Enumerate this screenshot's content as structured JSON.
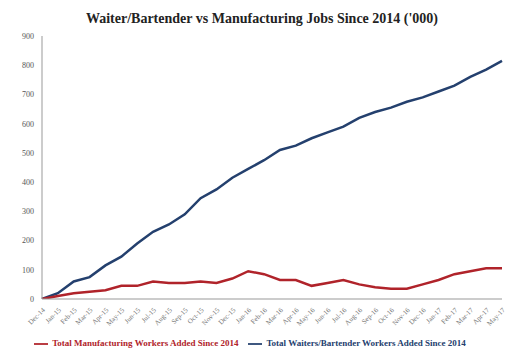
{
  "chart_data": {
    "type": "line",
    "title": "Waiter/Bartender vs Manufacturing Jobs Since 2014 ('000)",
    "categories": [
      "Dec-14",
      "Jan-15",
      "Feb-15",
      "Mar-15",
      "Apr-15",
      "May-15",
      "Jun-15",
      "Jul-15",
      "Aug-15",
      "Sep-15",
      "Oct-15",
      "Nov-15",
      "Dec-15",
      "Jan-16",
      "Feb-16",
      "Mar-16",
      "Apr-16",
      "May-16",
      "Jun-16",
      "Jul-16",
      "Aug-16",
      "Sep-16",
      "Oct-16",
      "Nov-16",
      "Dec-16",
      "Jan-17",
      "Feb-17",
      "Mar-17",
      "Apr-17",
      "May-17"
    ],
    "series": [
      {
        "name": "Total Waiters/Bartender Workers Added Since 2014",
        "color": "#24406e",
        "values": [
          0,
          20,
          60,
          75,
          115,
          145,
          190,
          230,
          255,
          290,
          345,
          375,
          415,
          445,
          475,
          510,
          525,
          550,
          570,
          590,
          620,
          640,
          655,
          675,
          690,
          710,
          730,
          760,
          785,
          815
        ]
      },
      {
        "name": "Total Manufacturing Workers Added Since 2014",
        "color": "#b0232a",
        "values": [
          0,
          10,
          20,
          25,
          30,
          45,
          45,
          60,
          55,
          55,
          60,
          55,
          70,
          95,
          85,
          65,
          65,
          45,
          55,
          65,
          50,
          40,
          35,
          35,
          50,
          65,
          85,
          95,
          105,
          105
        ]
      }
    ],
    "ylim": [
      0,
      900
    ],
    "yticks": [
      0,
      100,
      200,
      300,
      400,
      500,
      600,
      700,
      800,
      900
    ],
    "grid": false,
    "legend": "bottom"
  }
}
